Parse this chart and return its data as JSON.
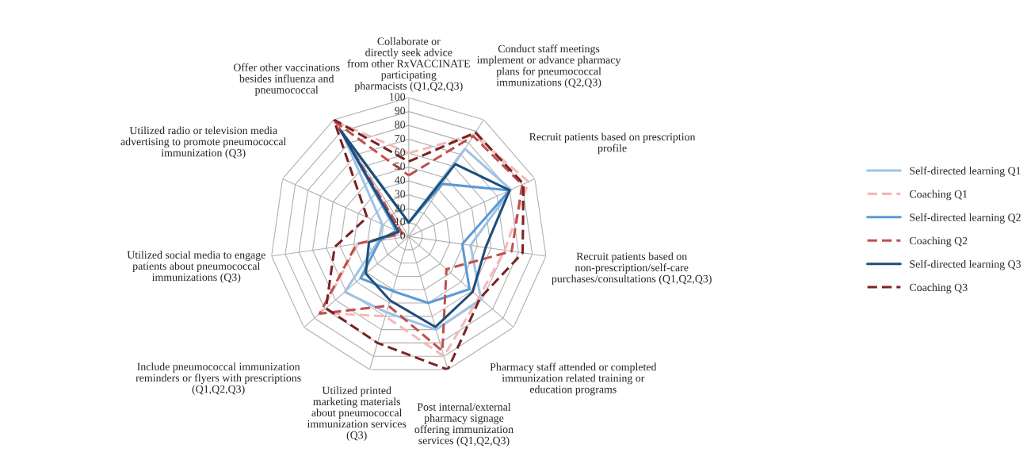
{
  "chart_data": {
    "type": "radar",
    "categories": [
      "Collaborate or directly seek advice from other RxVACCINATE participating pharmacists (Q1,Q2,Q3)",
      "Conduct staff meetings implement or advance pharmacy plans for pneumococcal immunizations (Q2,Q3)",
      "Recruit patients based on prescription profile",
      "Recruit patients based on non-prescription/self-care purchases/consultations (Q1,Q2,Q3)",
      "Pharmacy staff attended or completed immunization related training or education programs",
      "Post internal/external pharmacy signage offering immunization services (Q1,Q2,Q3)",
      "Utilized printed marketing materials about pneumococcal immunization services (Q3)",
      "Include pneumococcal immunization reminders or flyers with prescriptions (Q1,Q2,Q3)",
      "Utilized social media to engage patients about pneumococcal immunizations (Q3)",
      "Utilized radio or television media advertising to promote pneumococcal immunization (Q3)",
      "Offer other vaccinations besides influenza and pneumococcal"
    ],
    "series": [
      {
        "name": "Self-directed learning Q1",
        "color": "#9dc3e6",
        "line_style": "solid",
        "values": [
          10,
          75,
          81,
          45,
          69,
          70,
          57,
          61,
          22,
          21,
          89
        ]
      },
      {
        "name": "Coaching Q1",
        "color": "#f4b8b8",
        "line_style": "dashed",
        "values": [
          60,
          87,
          95,
          70,
          67,
          90,
          60,
          84,
          37,
          5,
          99
        ]
      },
      {
        "name": "Self-directed learning Q2",
        "color": "#5b9bd5",
        "line_style": "solid",
        "values": [
          10,
          45,
          80,
          39,
          58,
          50,
          41,
          46,
          21,
          10,
          90
        ]
      },
      {
        "name": "Coaching Q2",
        "color": "#c0504d",
        "line_style": "dashed",
        "values": [
          44,
          86,
          90,
          75,
          36,
          86,
          52,
          85,
          38,
          5,
          98
        ]
      },
      {
        "name": "Self-directed learning Q3",
        "color": "#1f4e79",
        "line_style": "solid",
        "values": [
          10,
          62,
          80,
          56,
          61,
          68,
          48,
          41,
          29,
          8,
          91
        ]
      },
      {
        "name": "Coaching Q3",
        "color": "#7b2323",
        "line_style": "dashed",
        "values": [
          54,
          89,
          91,
          83,
          68,
          100,
          80,
          79,
          54,
          33,
          100
        ]
      }
    ],
    "ylim": [
      0,
      100
    ],
    "yticks": [
      0,
      10,
      20,
      30,
      40,
      50,
      60,
      70,
      80,
      90,
      100
    ],
    "grid": true,
    "legend": "right",
    "marker": "none"
  }
}
